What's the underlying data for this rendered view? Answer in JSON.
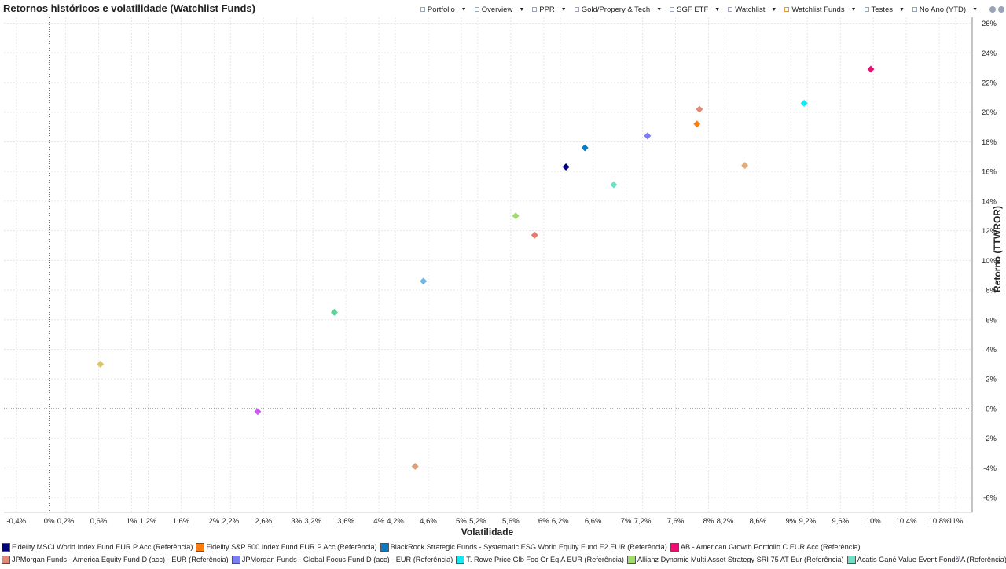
{
  "header": {
    "title": "Retornos históricos e volatilidade (Watchlist Funds)",
    "toolbar": [
      {
        "label": "Portfolio",
        "box": "grey"
      },
      {
        "label": "Overview",
        "box": "grey"
      },
      {
        "label": "PPR",
        "box": "grey"
      },
      {
        "label": "Gold/Propery & Tech",
        "box": "grey"
      },
      {
        "label": "SGF ETF",
        "box": "grey"
      },
      {
        "label": "Watchlist",
        "box": "grey"
      },
      {
        "label": "Watchlist Funds",
        "box": "orange"
      },
      {
        "label": "Testes",
        "box": "grey"
      },
      {
        "label": "No Ano (YTD)",
        "box": "grey"
      }
    ],
    "icons": [
      "export-icon",
      "settings-icon"
    ]
  },
  "chart_data": {
    "type": "scatter",
    "title": "Retornos históricos e volatilidade (Watchlist Funds)",
    "xlabel": "Volatilidade",
    "ylabel": "Retorno (TTWROR)",
    "xlim": [
      -0.55,
      11.2
    ],
    "ylim": [
      -7.0,
      26.4
    ],
    "x_ticks": [
      {
        "value": -0.4,
        "label": "-0,4%"
      },
      {
        "value": 0,
        "label": "0%"
      },
      {
        "value": 0.2,
        "label": "0,2%"
      },
      {
        "value": 0.6,
        "label": "0,6%"
      },
      {
        "value": 1,
        "label": "1%"
      },
      {
        "value": 1.2,
        "label": "1,2%"
      },
      {
        "value": 1.6,
        "label": "1,6%"
      },
      {
        "value": 2,
        "label": "2%"
      },
      {
        "value": 2.2,
        "label": "2,2%"
      },
      {
        "value": 2.6,
        "label": "2,6%"
      },
      {
        "value": 3,
        "label": "3%"
      },
      {
        "value": 3.2,
        "label": "3,2%"
      },
      {
        "value": 3.6,
        "label": "3,6%"
      },
      {
        "value": 4,
        "label": "4%"
      },
      {
        "value": 4.2,
        "label": "4,2%"
      },
      {
        "value": 4.6,
        "label": "4,6%"
      },
      {
        "value": 5,
        "label": "5%"
      },
      {
        "value": 5.2,
        "label": "5,2%"
      },
      {
        "value": 5.6,
        "label": "5,6%"
      },
      {
        "value": 6,
        "label": "6%"
      },
      {
        "value": 6.2,
        "label": "6,2%"
      },
      {
        "value": 6.6,
        "label": "6,6%"
      },
      {
        "value": 7,
        "label": "7%"
      },
      {
        "value": 7.2,
        "label": "7,2%"
      },
      {
        "value": 7.6,
        "label": "7,6%"
      },
      {
        "value": 8,
        "label": "8%"
      },
      {
        "value": 8.2,
        "label": "8,2%"
      },
      {
        "value": 8.6,
        "label": "8,6%"
      },
      {
        "value": 9,
        "label": "9%"
      },
      {
        "value": 9.2,
        "label": "9,2%"
      },
      {
        "value": 9.6,
        "label": "9,6%"
      },
      {
        "value": 10,
        "label": "10%"
      },
      {
        "value": 10.4,
        "label": "10,4%"
      },
      {
        "value": 10.8,
        "label": "10,8%"
      },
      {
        "value": 11,
        "label": "11%"
      }
    ],
    "y_ticks": [
      {
        "value": -6,
        "label": "-6%"
      },
      {
        "value": -4,
        "label": "-4%"
      },
      {
        "value": -2,
        "label": "-2%"
      },
      {
        "value": 0,
        "label": "0%"
      },
      {
        "value": 2,
        "label": "2%"
      },
      {
        "value": 4,
        "label": "4%"
      },
      {
        "value": 6,
        "label": "6%"
      },
      {
        "value": 8,
        "label": "8%"
      },
      {
        "value": 10,
        "label": "10%"
      },
      {
        "value": 12,
        "label": "12%"
      },
      {
        "value": 14,
        "label": "14%"
      },
      {
        "value": 16,
        "label": "16%"
      },
      {
        "value": 18,
        "label": "18%"
      },
      {
        "value": 20,
        "label": "20%"
      },
      {
        "value": 22,
        "label": "22%"
      },
      {
        "value": 24,
        "label": "24%"
      },
      {
        "value": 26,
        "label": "26%"
      }
    ],
    "grid": true,
    "marker": "diamond",
    "points": [
      {
        "x": 6.27,
        "y": 16.3,
        "color": "#000080"
      },
      {
        "x": 7.86,
        "y": 19.2,
        "color": "#ff7f0e"
      },
      {
        "x": 6.5,
        "y": 17.6,
        "color": "#0a7bc2"
      },
      {
        "x": 9.97,
        "y": 22.9,
        "color": "#ee0f73"
      },
      {
        "x": 7.89,
        "y": 20.2,
        "color": "#e08a75"
      },
      {
        "x": 7.26,
        "y": 18.4,
        "color": "#7b7ff2"
      },
      {
        "x": 9.16,
        "y": 20.6,
        "color": "#12eaf3"
      },
      {
        "x": 5.66,
        "y": 13.0,
        "color": "#9fdc6a"
      },
      {
        "x": 6.85,
        "y": 15.1,
        "color": "#6ee0c4"
      },
      {
        "x": 5.89,
        "y": 11.7,
        "color": "#e57d72"
      },
      {
        "x": 8.44,
        "y": 16.4,
        "color": "#e8ab73"
      },
      {
        "x": 4.54,
        "y": 8.6,
        "color": "#70b8e4"
      },
      {
        "x": 3.46,
        "y": 6.5,
        "color": "#5fd39a"
      },
      {
        "x": 0.62,
        "y": 3.0,
        "color": "#d9c56f"
      },
      {
        "x": 2.53,
        "y": -0.2,
        "color": "#c95de8"
      },
      {
        "x": 4.44,
        "y": -3.9,
        "color": "#dca078"
      }
    ],
    "legend_placement": "bottom",
    "legend": [
      {
        "name": "Fidelity MSCI World Index Fund EUR P Acc (Referência)",
        "color": "#000080"
      },
      {
        "name": "Fidelity S&P 500 Index Fund EUR P Acc (Referência)",
        "color": "#ff7f0e"
      },
      {
        "name": "BlackRock Strategic Funds - Systematic ESG World Equity Fund E2 EUR (Referência)",
        "color": "#0a7bc2"
      },
      {
        "name": "AB - American Growth Portfolio C EUR Acc (Referência)",
        "color": "#ee0f73"
      },
      {
        "name": "JPMorgan Funds - America Equity Fund D (acc) - EUR (Referência)",
        "color": "#e08a75"
      },
      {
        "name": "JPMorgan Funds - Global Focus Fund D (acc) - EUR (Referência)",
        "color": "#7b7ff2"
      },
      {
        "name": "T. Rowe Price Glb Foc Gr Eq A EUR (Referência)",
        "color": "#12eaf3"
      },
      {
        "name": "Allianz Dynamic Multi Asset Strategy SRI 75 AT Eur (Referência)",
        "color": "#9fdc6a"
      },
      {
        "name": "Acatis Gané Value Event Fonds A (Referência)",
        "color": "#6ee0c4"
      }
    ],
    "legend_more": "»"
  }
}
